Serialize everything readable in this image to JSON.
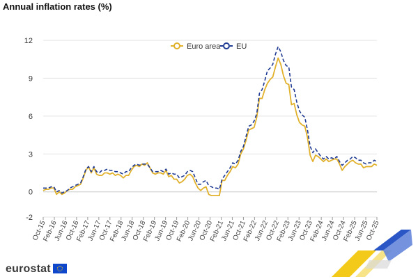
{
  "title": "Annual inflation rates (%)",
  "brand": "eurostat",
  "colors": {
    "euro_area": "#e1b12c",
    "eu": "#1f3a93",
    "grid": "#e3e3e3"
  },
  "chart_data": {
    "type": "line",
    "title": "Annual inflation rates (%)",
    "x_start": "Oct-15",
    "x_end": "Oct-25",
    "xtick_labels": [
      "Oct-15",
      "Feb-16",
      "Jun-16",
      "Oct-16",
      "Feb-17",
      "Jun-17",
      "Oct-17",
      "Feb-18",
      "Jun-18",
      "Oct-18",
      "Feb-19",
      "Jun-19",
      "Oct-19",
      "Feb-20",
      "Jun-20",
      "Oct-20",
      "Feb-21",
      "Jun-21",
      "Oct-21",
      "Feb-22",
      "Jun-22",
      "Oct-22",
      "Feb-23",
      "Jun-23",
      "Oct-23",
      "Feb-24",
      "Jun-24",
      "Oct-24",
      "Feb-25",
      "Jun-25",
      "Oct-25"
    ],
    "yticks": [
      -2,
      0,
      3,
      6,
      9,
      12
    ],
    "ylim": [
      -2,
      12
    ],
    "grid": true,
    "legend_position": "top-center",
    "series": [
      {
        "name": "Euro area",
        "style": "solid",
        "values": [
          0.1,
          0.2,
          0.2,
          0.3,
          0.3,
          -0.2,
          0,
          -0.2,
          -0.1,
          0.1,
          0.2,
          0.2,
          0.4,
          0.5,
          0.6,
          1.1,
          1.7,
          2,
          1.5,
          1.9,
          1.4,
          1.3,
          1.3,
          1.5,
          1.5,
          1.4,
          1.5,
          1.3,
          1.4,
          1.3,
          1.1,
          1.3,
          1.3,
          1.7,
          2,
          2.1,
          2,
          2.2,
          2.1,
          2.3,
          1.9,
          1.5,
          1.4,
          1.5,
          1.5,
          1.4,
          1.7,
          1.2,
          1.3,
          1,
          1,
          0.7,
          0.8,
          1,
          1.3,
          1.4,
          1.2,
          0.7,
          0.3,
          0.1,
          0.3,
          0.4,
          -0.2,
          -0.3,
          -0.3,
          -0.3,
          -0.3,
          0.9,
          0.9,
          1.3,
          1.6,
          2,
          1.9,
          2.2,
          3,
          3.4,
          4.1,
          4.9,
          5,
          5.1,
          5.9,
          7.4,
          7.4,
          8.1,
          8.6,
          8.9,
          9.1,
          9.9,
          10.6,
          10.1,
          9.2,
          8.6,
          8.5,
          6.9,
          7,
          6.1,
          5.5,
          5.3,
          5.2,
          4.3,
          2.9,
          2.4,
          2.9,
          2.8,
          2.6,
          2.4,
          2.6,
          2.4,
          2.5,
          2.6,
          2.6,
          2.2,
          1.7,
          2,
          2.2,
          2.4,
          2.5,
          2.3,
          2.2,
          2.2,
          1.9,
          2,
          2,
          2,
          2.2,
          2.1
        ]
      },
      {
        "name": "EU",
        "style": "dashed",
        "values": [
          0.3,
          0.3,
          0.3,
          0.4,
          0.4,
          0,
          0.1,
          -0.1,
          0,
          0.1,
          0.3,
          0.4,
          0.5,
          0.6,
          0.7,
          1.2,
          1.8,
          2,
          1.6,
          2,
          1.6,
          1.5,
          1.7,
          1.7,
          1.8,
          1.7,
          1.7,
          1.6,
          1.6,
          1.5,
          1.4,
          1.6,
          1.6,
          1.9,
          2.1,
          2.2,
          2.1,
          2.2,
          2.2,
          2.2,
          1.9,
          1.6,
          1.6,
          1.6,
          1.7,
          1.6,
          1.8,
          1.4,
          1.5,
          1.4,
          1.4,
          1.1,
          1.2,
          1.3,
          1.6,
          1.7,
          1.6,
          1.1,
          0.6,
          0.6,
          0.8,
          0.9,
          0.5,
          0.4,
          0.3,
          0.3,
          0.2,
          1,
          1.3,
          1.6,
          1.9,
          2.3,
          2.2,
          2.5,
          3.2,
          3.6,
          4.4,
          5.2,
          5.3,
          5.6,
          6.2,
          7.8,
          8.1,
          8.8,
          9.6,
          9.8,
          10.1,
          10.9,
          11.5,
          11.1,
          10.4,
          10,
          9.9,
          8.3,
          8.1,
          7.1,
          6.4,
          6.1,
          5.9,
          4.9,
          3.6,
          3.1,
          3.4,
          3.1,
          2.8,
          2.6,
          2.8,
          2.6,
          2.7,
          2.6,
          2.8,
          2.4,
          2.1,
          2.3,
          2.5,
          2.6,
          2.8,
          2.7,
          2.5,
          2.5,
          2.3,
          2.2,
          2.3,
          2.3,
          2.5,
          2.4
        ]
      }
    ]
  }
}
